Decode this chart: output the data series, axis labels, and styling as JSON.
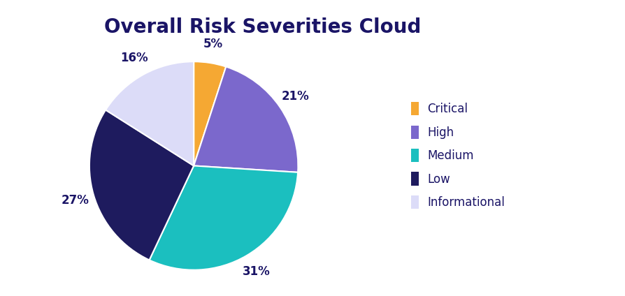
{
  "title": "Overall Risk Severities Cloud",
  "title_fontsize": 20,
  "title_fontweight": "bold",
  "title_color": "#1a1466",
  "labels": [
    "Critical",
    "High",
    "Medium",
    "Low",
    "Informational"
  ],
  "values": [
    5,
    21,
    31,
    27,
    16
  ],
  "colors": [
    "#F5A833",
    "#7B68CC",
    "#1BBFBF",
    "#1E1B5E",
    "#DCDCF8"
  ],
  "autopct_color": "#1a1466",
  "autopct_fontsize": 12,
  "legend_fontsize": 12,
  "legend_text_color": "#1a1466",
  "background_color": "#ffffff",
  "startangle": 90,
  "pctdistance": 1.18
}
